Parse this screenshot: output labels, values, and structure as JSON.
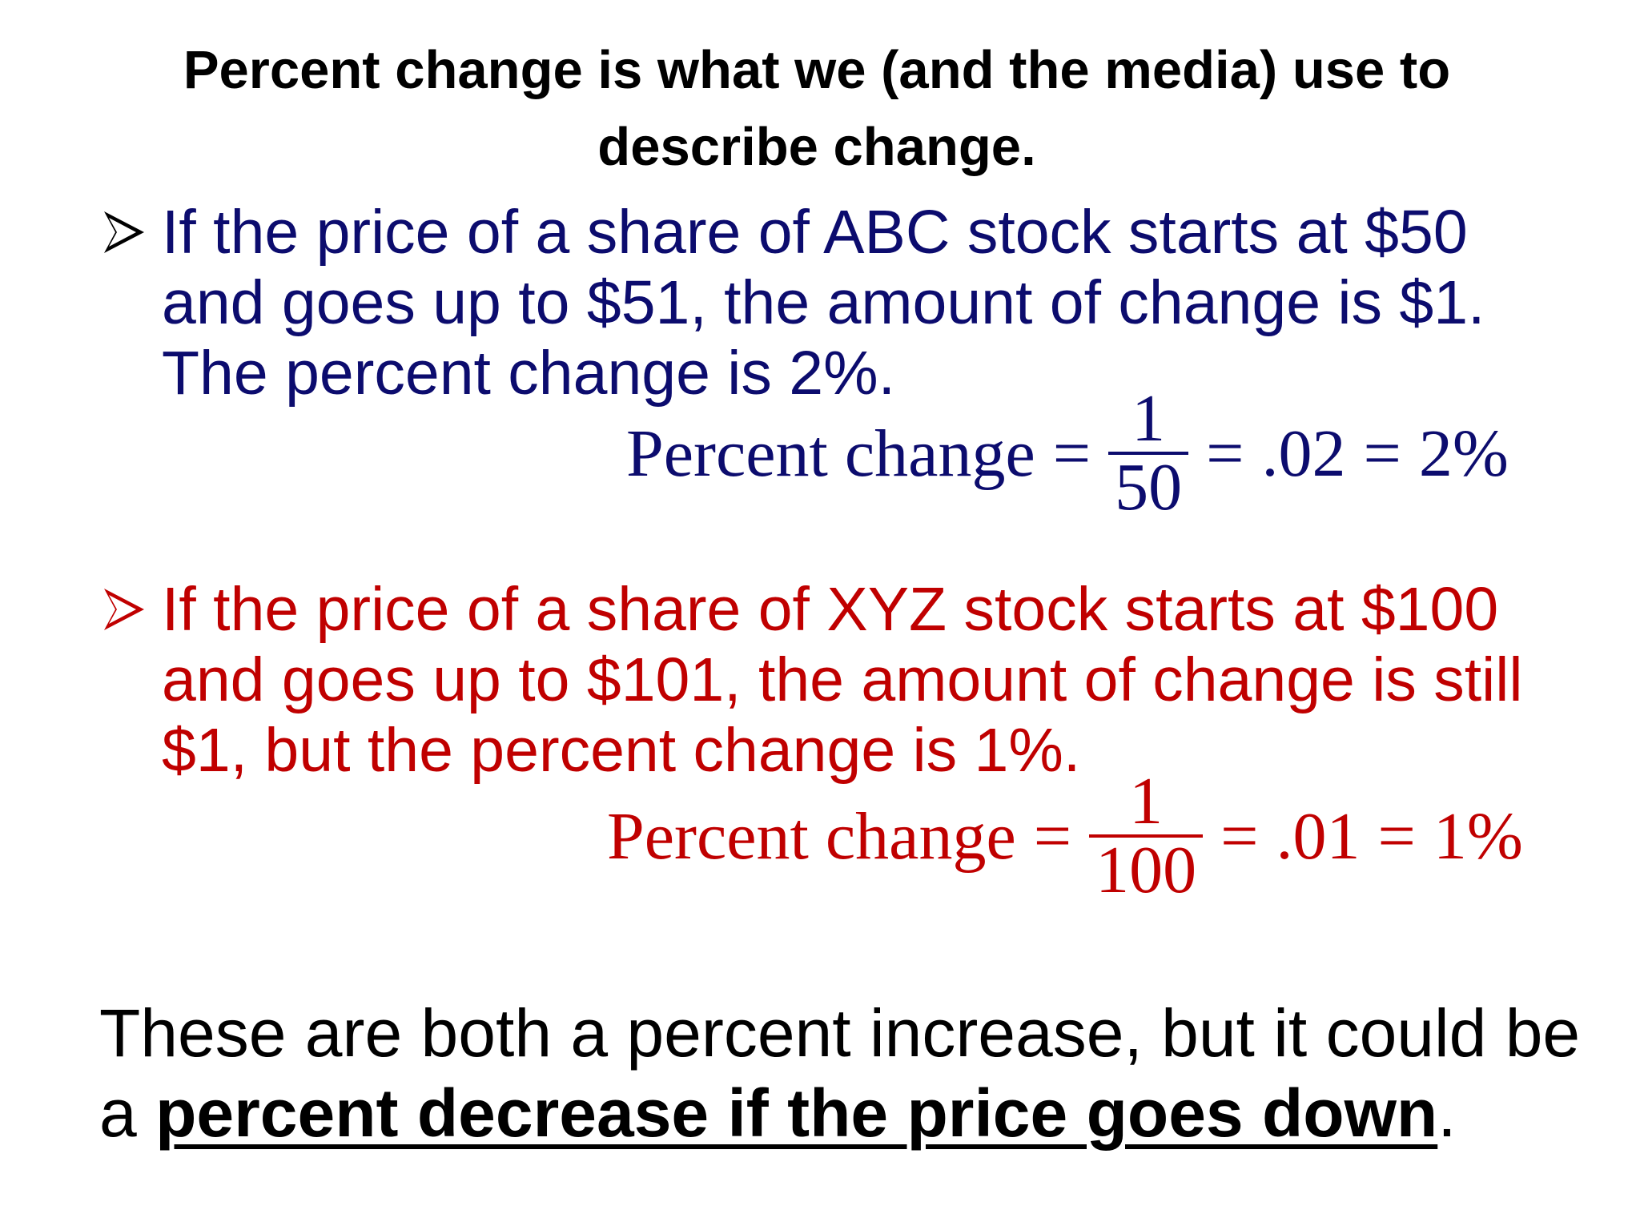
{
  "slide": {
    "title": "Percent change is what we (and the media) use to describe change.",
    "bullets": [
      {
        "text": "If the price of a share of ABC stock starts at $50 and goes up to $51, the amount of change is $1.  The percent change is 2%.",
        "color": "#0c0c6e",
        "formula": {
          "label": "Percent change",
          "eq1": "=",
          "numerator": "1",
          "denominator": "50",
          "eq2": "=",
          "decimal": ".02",
          "eq3": "=",
          "percent": "2%"
        }
      },
      {
        "text": "If the price of a share of XYZ stock starts at $100 and goes up to $101, the amount of change is still $1, but the percent change is 1%.",
        "color": "#c00000",
        "formula": {
          "label": "Percent change",
          "eq1": "=",
          "numerator": "1",
          "denominator": "100",
          "eq2": "=",
          "decimal": ".01",
          "eq3": "=",
          "percent": "1%"
        }
      }
    ],
    "conclusion": {
      "before": "These are both a percent increase, but it could be a ",
      "emphasis": "percent decrease if the price goes down",
      "after": "."
    },
    "icons": {
      "bullet": "arrow-bullet-icon"
    }
  }
}
